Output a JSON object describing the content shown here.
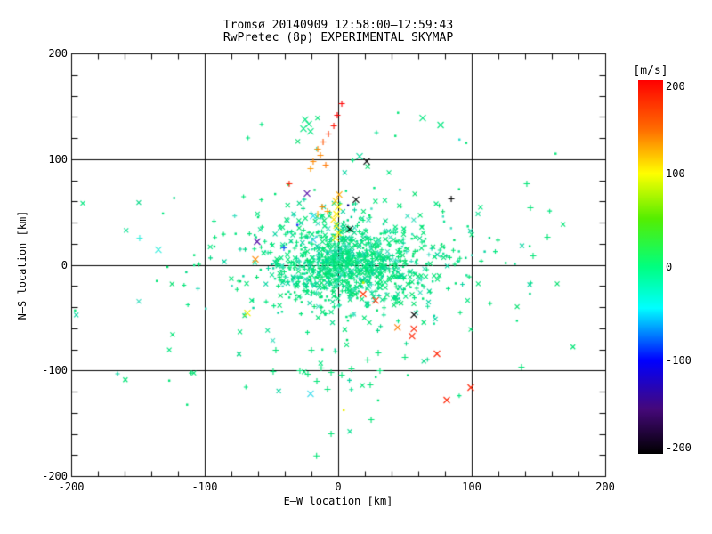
{
  "chart_data": {
    "type": "scatter",
    "title": "Tromsø 20140909 12:58:00–12:59:43",
    "subtitle": "RwPretec (8p) EXPERIMENTAL SKYMAP",
    "xlabel": "E–W location [km]",
    "ylabel": "N–S location [km]",
    "xlim": [
      -200,
      200
    ],
    "ylim": [
      -200,
      200
    ],
    "xticks": [
      -200,
      -100,
      0,
      100,
      200
    ],
    "yticks": [
      -200,
      -100,
      0,
      100,
      200
    ],
    "minor_tick_step": 20,
    "grid_lines": [
      -100,
      0,
      100
    ],
    "frame_color": "#000000",
    "legend_position": "right",
    "grid": true,
    "colorbar": {
      "label": "[m/s]",
      "ticks": [
        200,
        100,
        0,
        -100,
        -200
      ],
      "min": -200,
      "max": 200,
      "stops": [
        {
          "pos": 0.0,
          "color": "#ff0000"
        },
        {
          "pos": 0.13,
          "color": "#ff6a00"
        },
        {
          "pos": 0.25,
          "color": "#ffff00"
        },
        {
          "pos": 0.37,
          "color": "#55ee00"
        },
        {
          "pos": 0.5,
          "color": "#00ff80"
        },
        {
          "pos": 0.61,
          "color": "#00ffff"
        },
        {
          "pos": 0.75,
          "color": "#0000ff"
        },
        {
          "pos": 0.88,
          "color": "#45087a"
        },
        {
          "pos": 1.0,
          "color": "#000000"
        }
      ]
    },
    "seed": 1234,
    "palette": [
      "#00e476",
      "#00e476",
      "#00e476",
      "#00e67f",
      "#00e67f",
      "#00d886",
      "#00df6d",
      "#12e296",
      "#00d4a0",
      "#3ddfc0"
    ],
    "marker_mix": {
      "x": 0.38,
      "plus": 0.34,
      "dot": 0.28
    },
    "clusters": [
      {
        "n": 620,
        "cx": 6,
        "cy": -4,
        "sx": 26,
        "sy": 17
      },
      {
        "n": 300,
        "cx": 10,
        "cy": 6,
        "sx": 44,
        "sy": 27
      },
      {
        "n": 120,
        "cx": 25,
        "cy": 20,
        "sx": 40,
        "sy": 18
      },
      {
        "n": 150,
        "cx": 0,
        "cy": -5,
        "sx": 80,
        "sy": 55
      }
    ],
    "points": [
      {
        "x": 2.7,
        "y": 152.4,
        "c": "#ff0000",
        "m": "+"
      },
      {
        "x": -0.7,
        "y": 141.5,
        "c": "#ff0000",
        "m": "+"
      },
      {
        "x": -3.3,
        "y": 131.4,
        "c": "#ff1100",
        "m": "+"
      },
      {
        "x": -7.3,
        "y": 123.8,
        "c": "#ff3300",
        "m": "+"
      },
      {
        "x": -11.3,
        "y": 116.2,
        "c": "#ff5500",
        "m": "+"
      },
      {
        "x": -15.3,
        "y": 109.5,
        "c": "#ff8800",
        "m": "+"
      },
      {
        "x": -13.3,
        "y": 103.6,
        "c": "#ff8800",
        "m": "+"
      },
      {
        "x": -18.7,
        "y": 97.7,
        "c": "#ff8800",
        "m": "+"
      },
      {
        "x": -20.7,
        "y": 90.9,
        "c": "#ff9900",
        "m": "+"
      },
      {
        "x": -9.3,
        "y": 94.3,
        "c": "#ff7700",
        "m": "+"
      },
      {
        "x": 0.7,
        "y": 66.5,
        "c": "#ffaa00",
        "m": "x"
      },
      {
        "x": -2.0,
        "y": 60.6,
        "c": "#ffcc00",
        "m": "x"
      },
      {
        "x": 0.0,
        "y": 54.7,
        "c": "#ffee00",
        "m": "x"
      },
      {
        "x": -1.3,
        "y": 48.0,
        "c": "#ffee00",
        "m": "x"
      },
      {
        "x": -3.3,
        "y": 42.9,
        "c": "#ffdd00",
        "m": "x"
      },
      {
        "x": -1.3,
        "y": 37.1,
        "c": "#ffee00",
        "m": "x"
      },
      {
        "x": 0.0,
        "y": 30.3,
        "c": "#eeee00",
        "m": "x"
      },
      {
        "x": -2.0,
        "y": 25.3,
        "c": "#ffee00",
        "m": "x"
      },
      {
        "x": -12.0,
        "y": 54.7,
        "c": "#ff8800",
        "m": "+"
      },
      {
        "x": -8.0,
        "y": 50.5,
        "c": "#ff9900",
        "m": "+"
      },
      {
        "x": -15.3,
        "y": 48.0,
        "c": "#ffaa00",
        "m": "+"
      },
      {
        "x": -18.7,
        "y": 46.3,
        "c": "#22ddee",
        "m": "x"
      },
      {
        "x": -18.7,
        "y": 23.6,
        "c": "#33ccee",
        "m": "x"
      },
      {
        "x": -23.3,
        "y": 67.4,
        "c": "#5511aa",
        "m": "x"
      },
      {
        "x": -60.7,
        "y": 21.9,
        "c": "#5511aa",
        "m": "x"
      },
      {
        "x": 7.3,
        "y": 56.4,
        "c": "#000088",
        "m": "."
      },
      {
        "x": 21.3,
        "y": 97.7,
        "c": "#000000",
        "m": "x"
      },
      {
        "x": 13.3,
        "y": 61.5,
        "c": "#000000",
        "m": "x"
      },
      {
        "x": 8.7,
        "y": 33.7,
        "c": "#000000",
        "m": "x"
      },
      {
        "x": 84.7,
        "y": 62.3,
        "c": "#000000",
        "m": "+"
      },
      {
        "x": 56.7,
        "y": -47.2,
        "c": "#000000",
        "m": "x"
      },
      {
        "x": -36.7,
        "y": 76.6,
        "c": "#ff2200",
        "m": "+"
      },
      {
        "x": -62.0,
        "y": 5.1,
        "c": "#ff8800",
        "m": "x"
      },
      {
        "x": -40.7,
        "y": 16.0,
        "c": "#2255ff",
        "m": "+"
      },
      {
        "x": -30.7,
        "y": 37.9,
        "c": "#2233ff",
        "m": "."
      },
      {
        "x": -134.7,
        "y": 14.3,
        "c": "#33eedd",
        "m": "x"
      },
      {
        "x": -148.7,
        "y": 25.3,
        "c": "#33eedd",
        "m": "+"
      },
      {
        "x": -68.0,
        "y": -45.5,
        "c": "#eeee00",
        "m": "x"
      },
      {
        "x": 18.7,
        "y": -16.8,
        "c": "#ddee00",
        "m": "."
      },
      {
        "x": 56.7,
        "y": -60.6,
        "c": "#ff2200",
        "m": "x"
      },
      {
        "x": 55.3,
        "y": -67.4,
        "c": "#ff2200",
        "m": "x"
      },
      {
        "x": 74.0,
        "y": -84.2,
        "c": "#ff2200",
        "m": "x"
      },
      {
        "x": 99.3,
        "y": -116.2,
        "c": "#ff2200",
        "m": "x"
      },
      {
        "x": 81.3,
        "y": -128.0,
        "c": "#ff2200",
        "m": "x"
      },
      {
        "x": 18.7,
        "y": -27.8,
        "c": "#ff3300",
        "m": "x"
      },
      {
        "x": 28.0,
        "y": -33.7,
        "c": "#ff3300",
        "m": "x"
      },
      {
        "x": 44.5,
        "y": -59.2,
        "c": "#ff7700",
        "m": "x"
      },
      {
        "x": -20.7,
        "y": -122.1,
        "c": "#44ddee",
        "m": "x"
      },
      {
        "x": 4.0,
        "y": -137.3,
        "c": "#eeee00",
        "m": "."
      },
      {
        "x": -24.7,
        "y": 137.3,
        "c": "#00e67f",
        "m": "x"
      },
      {
        "x": -22.0,
        "y": 133.1,
        "c": "#00e67f",
        "m": "x"
      },
      {
        "x": -26.0,
        "y": 128.8,
        "c": "#00e67f",
        "m": "x"
      },
      {
        "x": -20.7,
        "y": 126.3,
        "c": "#00e67f",
        "m": "x"
      },
      {
        "x": 63.3,
        "y": 138.9,
        "c": "#00e67f",
        "m": "x"
      },
      {
        "x": 76.7,
        "y": 132.2,
        "c": "#00e67f",
        "m": "x"
      },
      {
        "x": 16.0,
        "y": 102.7,
        "c": "#00dd99",
        "m": "x"
      },
      {
        "x": 90.7,
        "y": 118.7,
        "c": "#22ddcc",
        "m": "."
      },
      {
        "x": 42.7,
        "y": 122.1,
        "c": "#00e476",
        "m": "."
      },
      {
        "x": 95.8,
        "y": 115.4,
        "c": "#00e476",
        "m": "."
      },
      {
        "x": 44.7,
        "y": 144.0,
        "c": "#00e476",
        "m": "."
      },
      {
        "x": 141.3,
        "y": 76.6,
        "c": "#00e476",
        "m": "+"
      },
      {
        "x": 144.0,
        "y": 53.9,
        "c": "#00e476",
        "m": "+"
      },
      {
        "x": 156.7,
        "y": 26.1,
        "c": "#00e476",
        "m": "+"
      },
      {
        "x": 143.3,
        "y": 17.7,
        "c": "#00e476",
        "m": "."
      },
      {
        "x": 146.0,
        "y": 8.4,
        "c": "#00e476",
        "m": "+"
      },
      {
        "x": 162.7,
        "y": 105.3,
        "c": "#00e476",
        "m": "."
      },
      {
        "x": 137.3,
        "y": -96.8,
        "c": "#00e476",
        "m": "+"
      },
      {
        "x": -108.0,
        "y": 9.3,
        "c": "#00e476",
        "m": "."
      },
      {
        "x": -136.0,
        "y": -15.2,
        "c": "#00e476",
        "m": "."
      },
      {
        "x": -126.7,
        "y": -109.5,
        "c": "#00e476",
        "m": "."
      },
      {
        "x": -113.3,
        "y": -132.2,
        "c": "#00e476",
        "m": "."
      },
      {
        "x": -46.7,
        "y": -80.8,
        "c": "#00e476",
        "m": "+"
      },
      {
        "x": -20.0,
        "y": -80.8,
        "c": "#00e476",
        "m": "+"
      },
      {
        "x": -12.0,
        "y": -80.0,
        "c": "#00e476",
        "m": "."
      },
      {
        "x": -48.7,
        "y": -101.1,
        "c": "#00e476",
        "m": "+"
      },
      {
        "x": -28.7,
        "y": -100.2,
        "c": "#00e476",
        "m": "+"
      },
      {
        "x": -22.7,
        "y": -103.6,
        "c": "#00e476",
        "m": "+"
      },
      {
        "x": -12.7,
        "y": -97.7,
        "c": "#00e476",
        "m": "+"
      },
      {
        "x": -5.3,
        "y": -101.9,
        "c": "#00e476",
        "m": "+"
      },
      {
        "x": 2.7,
        "y": -104.4,
        "c": "#00e476",
        "m": "+"
      },
      {
        "x": 10.0,
        "y": -98.5,
        "c": "#00e476",
        "m": "+"
      },
      {
        "x": 22.0,
        "y": -90.1,
        "c": "#00e476",
        "m": "+"
      },
      {
        "x": 30.0,
        "y": -83.4,
        "c": "#00e476",
        "m": "+"
      },
      {
        "x": 50.0,
        "y": -87.6,
        "c": "#00e476",
        "m": "+"
      },
      {
        "x": 31.3,
        "y": -100.2,
        "c": "#00e476",
        "m": "+"
      },
      {
        "x": 28.0,
        "y": -106.1,
        "c": "#00e476",
        "m": "."
      },
      {
        "x": 24.0,
        "y": -113.7,
        "c": "#00e476",
        "m": "+"
      },
      {
        "x": 52.0,
        "y": -104.4,
        "c": "#00e476",
        "m": "."
      },
      {
        "x": -16.0,
        "y": -110.3,
        "c": "#00e476",
        "m": "+"
      },
      {
        "x": -8.0,
        "y": -117.9,
        "c": "#00e476",
        "m": "+"
      },
      {
        "x": 24.7,
        "y": -146.5,
        "c": "#00e476",
        "m": "+"
      },
      {
        "x": -16.2,
        "y": -180.8,
        "c": "#00e476",
        "m": "+"
      },
      {
        "x": -5.3,
        "y": -160.0,
        "c": "#00e476",
        "m": "+"
      }
    ]
  }
}
